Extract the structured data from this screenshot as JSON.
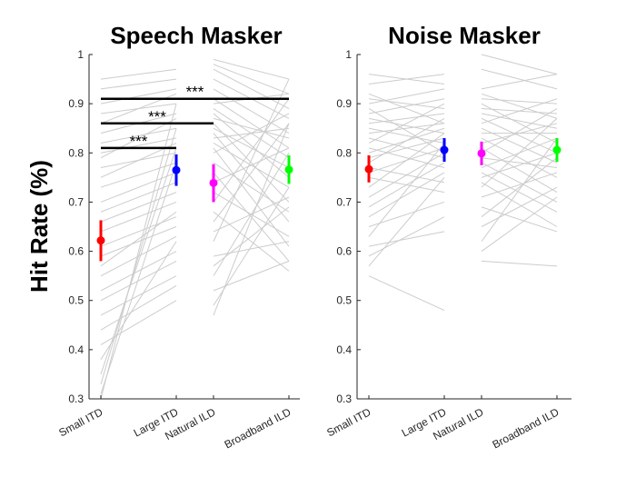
{
  "chart_data": [
    {
      "type": "scatter",
      "title": "Speech Masker",
      "ylabel": "Hit Rate (%)",
      "categories": [
        "Small ITD",
        "Large ITD",
        "Natural ILD",
        "Broadband ILD"
      ],
      "ylim": [
        0.3,
        1
      ],
      "yticks": [
        0.3,
        0.4,
        0.5,
        0.6,
        0.7,
        0.8,
        0.9,
        1
      ],
      "condition_colors": [
        "#ff0000",
        "#0000ff",
        "#ff00ff",
        "#00ff00"
      ],
      "means": [
        0.622,
        0.765,
        0.739,
        0.766
      ],
      "error_low": [
        0.58,
        0.733,
        0.7,
        0.737
      ],
      "error_high": [
        0.663,
        0.797,
        0.777,
        0.795
      ],
      "subject_line_color": "#cccccc",
      "pair_lines_small_large": [
        [
          0.95,
          0.97
        ],
        [
          0.93,
          0.95
        ],
        [
          0.9,
          0.93
        ],
        [
          0.88,
          0.9
        ],
        [
          0.86,
          0.92
        ],
        [
          0.84,
          0.88
        ],
        [
          0.82,
          0.85
        ],
        [
          0.8,
          0.83
        ],
        [
          0.79,
          0.87
        ],
        [
          0.77,
          0.8
        ],
        [
          0.75,
          0.82
        ],
        [
          0.73,
          0.78
        ],
        [
          0.7,
          0.76
        ],
        [
          0.68,
          0.74
        ],
        [
          0.66,
          0.72
        ],
        [
          0.64,
          0.7
        ],
        [
          0.61,
          0.67
        ],
        [
          0.59,
          0.65
        ],
        [
          0.57,
          0.68
        ],
        [
          0.55,
          0.63
        ],
        [
          0.52,
          0.6
        ],
        [
          0.5,
          0.58
        ],
        [
          0.47,
          0.55
        ],
        [
          0.44,
          0.53
        ],
        [
          0.41,
          0.5
        ],
        [
          0.38,
          0.62
        ],
        [
          0.35,
          0.81
        ],
        [
          0.33,
          0.85
        ],
        [
          0.31,
          0.78
        ],
        [
          0.3,
          0.9
        ]
      ],
      "pair_lines_natural_broadband": [
        [
          0.99,
          0.95
        ],
        [
          0.98,
          0.92
        ],
        [
          0.97,
          0.89
        ],
        [
          0.95,
          0.87
        ],
        [
          0.93,
          0.84
        ],
        [
          0.91,
          0.81
        ],
        [
          0.9,
          0.92
        ],
        [
          0.89,
          0.79
        ],
        [
          0.88,
          0.75
        ],
        [
          0.87,
          0.83
        ],
        [
          0.86,
          0.7
        ],
        [
          0.85,
          0.77
        ],
        [
          0.84,
          0.66
        ],
        [
          0.83,
          0.85
        ],
        [
          0.82,
          0.73
        ],
        [
          0.81,
          0.61
        ],
        [
          0.8,
          0.88
        ],
        [
          0.78,
          0.68
        ],
        [
          0.76,
          0.58
        ],
        [
          0.74,
          0.81
        ],
        [
          0.72,
          0.63
        ],
        [
          0.7,
          0.91
        ],
        [
          0.68,
          0.56
        ],
        [
          0.66,
          0.86
        ],
        [
          0.64,
          0.71
        ],
        [
          0.62,
          0.95
        ],
        [
          0.59,
          0.62
        ],
        [
          0.57,
          0.69
        ],
        [
          0.55,
          0.8
        ],
        [
          0.52,
          0.58
        ],
        [
          0.49,
          0.73
        ],
        [
          0.47,
          0.86
        ]
      ],
      "significance": [
        {
          "from": "Small ITD",
          "to": "Large ITD",
          "y": 0.81,
          "label": "***"
        },
        {
          "from": "Small ITD",
          "to": "Natural ILD",
          "y": 0.86,
          "label": "***"
        },
        {
          "from": "Small ITD",
          "to": "Broadband ILD",
          "y": 0.91,
          "label": "***"
        }
      ]
    },
    {
      "type": "scatter",
      "title": "Noise Masker",
      "categories": [
        "Small ITD",
        "Large ITD",
        "Natural ILD",
        "Broadband ILD"
      ],
      "ylim": [
        0.3,
        1
      ],
      "yticks": [
        0.3,
        0.4,
        0.5,
        0.6,
        0.7,
        0.8,
        0.9,
        1
      ],
      "condition_colors": [
        "#ff0000",
        "#0000ff",
        "#ff00ff",
        "#00ff00"
      ],
      "means": [
        0.767,
        0.806,
        0.799,
        0.806
      ],
      "error_low": [
        0.74,
        0.782,
        0.775,
        0.782
      ],
      "error_high": [
        0.795,
        0.83,
        0.823,
        0.83
      ],
      "subject_line_color": "#cccccc",
      "pair_lines_small_large": [
        [
          0.96,
          0.94
        ],
        [
          0.94,
          0.96
        ],
        [
          0.92,
          0.86
        ],
        [
          0.91,
          0.89
        ],
        [
          0.9,
          0.93
        ],
        [
          0.89,
          0.8
        ],
        [
          0.88,
          0.91
        ],
        [
          0.87,
          0.84
        ],
        [
          0.86,
          0.88
        ],
        [
          0.85,
          0.82
        ],
        [
          0.84,
          0.86
        ],
        [
          0.83,
          0.79
        ],
        [
          0.82,
          0.9
        ],
        [
          0.81,
          0.77
        ],
        [
          0.8,
          0.85
        ],
        [
          0.79,
          0.83
        ],
        [
          0.78,
          0.87
        ],
        [
          0.77,
          0.74
        ],
        [
          0.76,
          0.81
        ],
        [
          0.75,
          0.72
        ],
        [
          0.73,
          0.84
        ],
        [
          0.71,
          0.8
        ],
        [
          0.69,
          0.78
        ],
        [
          0.67,
          0.76
        ],
        [
          0.65,
          0.7
        ],
        [
          0.63,
          0.82
        ],
        [
          0.61,
          0.64
        ],
        [
          0.59,
          0.67
        ],
        [
          0.57,
          0.75
        ],
        [
          0.55,
          0.48
        ]
      ],
      "pair_lines_natural_broadband": [
        [
          1.0,
          0.96
        ],
        [
          0.97,
          0.93
        ],
        [
          0.93,
          0.96
        ],
        [
          0.92,
          0.87
        ],
        [
          0.91,
          0.9
        ],
        [
          0.9,
          0.82
        ],
        [
          0.89,
          0.88
        ],
        [
          0.88,
          0.85
        ],
        [
          0.87,
          0.8
        ],
        [
          0.86,
          0.91
        ],
        [
          0.85,
          0.78
        ],
        [
          0.84,
          0.84
        ],
        [
          0.83,
          0.75
        ],
        [
          0.82,
          0.86
        ],
        [
          0.81,
          0.72
        ],
        [
          0.8,
          0.89
        ],
        [
          0.79,
          0.77
        ],
        [
          0.78,
          0.7
        ],
        [
          0.77,
          0.83
        ],
        [
          0.76,
          0.68
        ],
        [
          0.75,
          0.8
        ],
        [
          0.74,
          0.65
        ],
        [
          0.73,
          0.87
        ],
        [
          0.71,
          0.76
        ],
        [
          0.69,
          0.64
        ],
        [
          0.67,
          0.79
        ],
        [
          0.65,
          0.73
        ],
        [
          0.62,
          0.83
        ],
        [
          0.6,
          0.71
        ],
        [
          0.58,
          0.57
        ]
      ],
      "significance": []
    }
  ]
}
